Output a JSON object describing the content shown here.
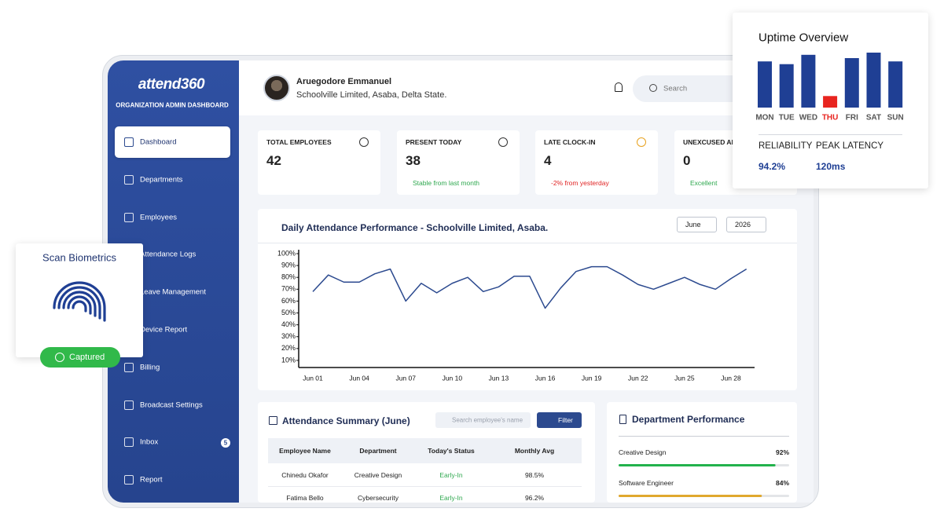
{
  "sidebar": {
    "logo": "attend360",
    "subtitle": "ORGANIZATION ADMIN DASHBOARD",
    "menu": [
      "Dashboard",
      "Departments",
      "Employees",
      "Attendance Logs",
      "Leave Management",
      "Device Report",
      "Billing",
      "Broadcast Settings",
      "Inbox",
      "Report"
    ],
    "inbox_badge": "5"
  },
  "header": {
    "name": "Aruegodore Emmanuel",
    "org": "Schoolville Limited, Asaba, Delta State.",
    "search": "Search"
  },
  "stats": [
    {
      "label": "TOTAL EMPLOYEES",
      "value": 42
    },
    {
      "label": "PRESENT TODAY",
      "value": 38,
      "note": "Stable from last month",
      "color": "#2fa84f"
    },
    {
      "label": "LATE CLOCK-IN",
      "value": 4,
      "note": "-2% from yesterday",
      "color": "#e02424"
    },
    {
      "label": "UNEXCUSED ABSENCES",
      "value": 0,
      "note": "Excellent",
      "color": "#2fa84f"
    }
  ],
  "chart_data": [
    {
      "type": "line",
      "title": "Daily Attendance Performance - Schoolville Limited, Asaba.",
      "filters": [
        "June",
        "2026"
      ],
      "categories": [
        "Jun 01",
        null,
        null,
        "Jun 04",
        null,
        null,
        "Jun 07",
        null,
        null,
        "Jun 10",
        null,
        null,
        "Jun 13",
        null,
        null,
        "Jun 16",
        null,
        null,
        "Jun 19",
        null,
        null,
        "Jun 22",
        null,
        null,
        "Jun 25",
        null,
        null,
        "Jun 28",
        null
      ],
      "values": [
        68,
        82,
        76,
        76,
        83,
        87,
        60,
        75,
        67,
        75,
        80,
        68,
        72,
        81,
        81,
        54,
        71,
        85,
        89,
        89,
        82,
        74,
        70,
        75,
        80,
        74,
        70,
        79,
        87
      ],
      "color": "#2c4a8f",
      "ylim": [
        4,
        100
      ],
      "yticks": [
        {
          "value": 10,
          "label": "10%"
        },
        {
          "value": 20,
          "label": "20%"
        },
        {
          "value": 30,
          "label": "30%"
        },
        {
          "value": 40,
          "label": "40%"
        },
        {
          "value": 50,
          "label": "50%"
        },
        {
          "value": 60,
          "label": "60%"
        },
        {
          "value": 70,
          "label": "70%"
        },
        {
          "value": 80,
          "label": "80%"
        },
        {
          "value": 90,
          "label": "90%"
        },
        {
          "value": 100,
          "label": "100%"
        }
      ]
    },
    {
      "type": "bar",
      "title": "Uptime Overview",
      "categories": [
        "MON",
        "TUE",
        "WED",
        "THU",
        "FRI",
        "SAT",
        "SUN"
      ],
      "values": [
        84,
        79,
        96,
        21,
        90,
        100,
        84
      ],
      "color": "#1f3f94",
      "colors": [
        "#1f3f94",
        "#1f3f94",
        "#1f3f94",
        "#e8241f",
        "#1f3f94",
        "#1f3f94",
        "#1f3f94"
      ],
      "stats": [
        {
          "label": "RELIABILITY",
          "value": "94.2%"
        },
        {
          "label": "PEAK LATENCY",
          "value": "120ms"
        }
      ]
    }
  ],
  "summary": {
    "title": "Attendance Summary (June)",
    "search": "Search employee's name",
    "button": "Filter",
    "columns": [
      "Employee Name",
      "Department",
      "Today's Status",
      "Monthly Avg"
    ],
    "rows": [
      [
        "Chinedu Okafor",
        "Creative Design",
        "Early-In",
        "98.5%"
      ],
      [
        "Fatima Bello",
        "Cybersecurity",
        "Early-In",
        "96.2%"
      ]
    ]
  },
  "departments": {
    "title": "Department Performance",
    "names": [
      "Creative Design",
      "Software Engineer"
    ],
    "values": [
      92,
      84
    ],
    "value_labels": [
      "92%",
      "84%"
    ],
    "colors": [
      "#22b24c",
      "#e0a82e"
    ],
    "xlim": [
      0,
      100
    ]
  },
  "biometrics": {
    "title": "Scan Biometrics",
    "status": "Captured"
  }
}
